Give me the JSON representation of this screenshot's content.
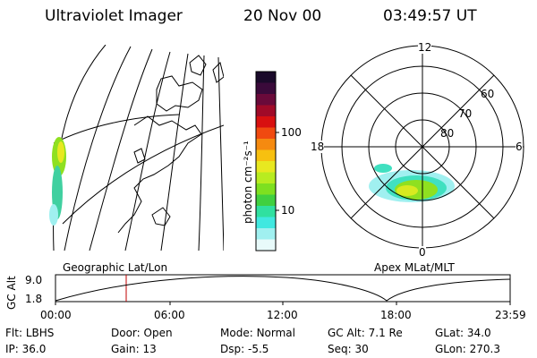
{
  "header": {
    "title": "Ultraviolet Imager",
    "date": "20 Nov 00",
    "time": "03:49:57 UT"
  },
  "colorbar": {
    "label": "photon cm⁻²s⁻¹",
    "ticks": [
      "100",
      "10"
    ],
    "colors": [
      "#1a0a2a",
      "#3a0a3a",
      "#6a0a3a",
      "#a00a28",
      "#d81010",
      "#f04a10",
      "#f58a10",
      "#f7c010",
      "#e8e820",
      "#b8ec20",
      "#7ee020",
      "#40d040",
      "#30e0a0",
      "#40e8e0",
      "#a0f0f0",
      "#e8fafa"
    ]
  },
  "map": {
    "caption": "Geographic Lat/Lon"
  },
  "polar": {
    "caption": "Apex MLat/MLT",
    "mlt_labels": {
      "top": "12",
      "right": "6",
      "bottom": "0",
      "left": "18"
    },
    "lat_labels": [
      "60",
      "70",
      "80"
    ]
  },
  "altitude_plot": {
    "ylabel": "GC Alt",
    "yticks": [
      "9.0",
      "1.8"
    ],
    "xticks": [
      "00:00",
      "06:00",
      "12:00",
      "18:00",
      "23:59"
    ]
  },
  "status": {
    "row1": [
      {
        "key": "Flt:",
        "val": "LBHS"
      },
      {
        "key": "Door:",
        "val": "Open"
      },
      {
        "key": "Mode:",
        "val": "Normal"
      },
      {
        "key": "GC Alt:",
        "val": "7.1 Re"
      },
      {
        "key": "GLat:",
        "val": "34.0"
      }
    ],
    "row2": [
      {
        "key": "IP:",
        "val": "36.0"
      },
      {
        "key": "Gain:",
        "val": "13"
      },
      {
        "key": "Dsp:",
        "val": "-5.5"
      },
      {
        "key": "Seq:",
        "val": "30"
      },
      {
        "key": "GLon:",
        "val": "270.3"
      }
    ]
  }
}
